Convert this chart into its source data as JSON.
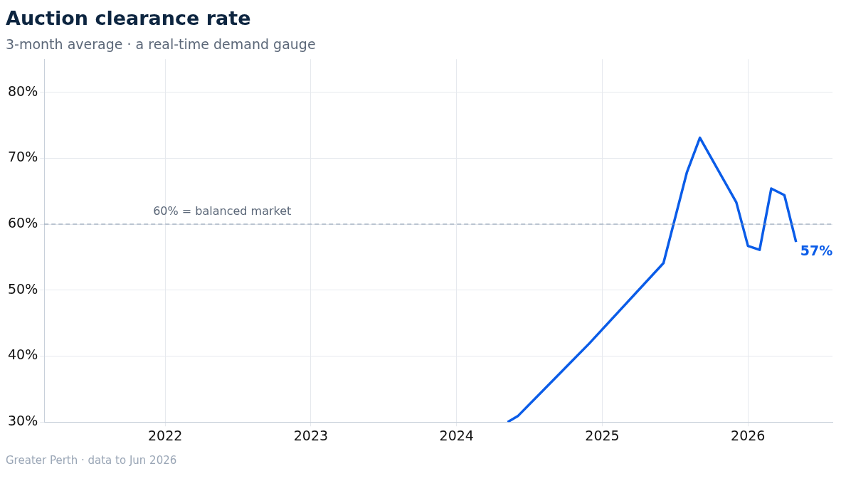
{
  "chart_data": {
    "type": "line",
    "title": "Auction clearance rate",
    "subtitle": "3-month average · a real-time demand gauge",
    "x": [
      2024.35,
      2024.42,
      2024.91,
      2025.42,
      2025.58,
      2025.67,
      2025.92,
      2026.0,
      2026.08,
      2026.16,
      2026.25,
      2026.33
    ],
    "series": [
      {
        "color": "#0a5ce8",
        "values": [
          30,
          30.9,
          41.9,
          54.1,
          67.8,
          73.1,
          63.3,
          56.7,
          56.1,
          65.4,
          64.4,
          57.3
        ]
      }
    ],
    "xlim": [
      2021.17,
      2026.58
    ],
    "xticks": [
      2022,
      2023,
      2024,
      2025,
      2026
    ],
    "ylim": [
      30,
      85
    ],
    "yticks": [
      {
        "value": 30,
        "label": "30%"
      },
      {
        "value": 40,
        "label": "40%"
      },
      {
        "value": 50,
        "label": "50%"
      },
      {
        "value": 60,
        "label": "60%"
      },
      {
        "value": 70,
        "label": "70%"
      },
      {
        "value": 80,
        "label": "80%"
      }
    ],
    "grid": true,
    "legend": false,
    "ref_lines": [
      {
        "axis": "y",
        "value": 60,
        "label": "60% = balanced market",
        "color": "#8a9bb0",
        "line_style": "dashed"
      }
    ],
    "annotations": [
      {
        "text": "57%",
        "x": 2026.33,
        "y": 57.3
      },
      "Greater Perth  ·  data to Jun 2026"
    ]
  }
}
